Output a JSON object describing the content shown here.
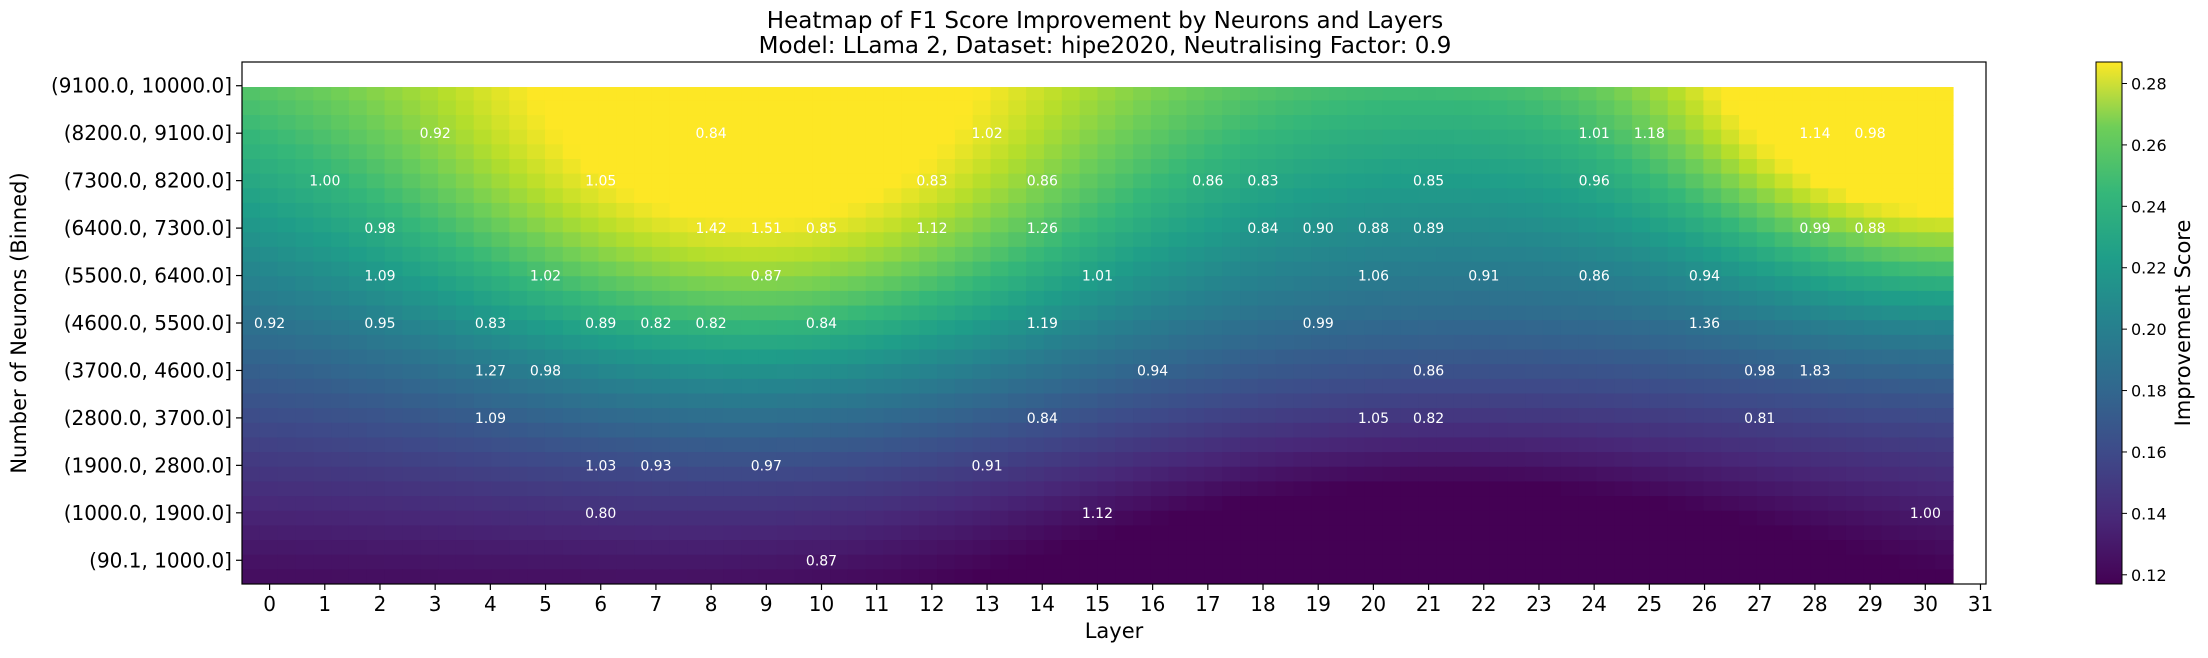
{
  "chart_data": {
    "type": "heatmap",
    "title": "Heatmap of F1 Score Improvement by Neurons and Layers",
    "subtitle": "Model: LLama 2, Dataset: hipe2020, Neutralising Factor: 0.9",
    "xlabel": "Layer",
    "ylabel": "Number of Neurons (Binned)",
    "x_ticks": [
      "0",
      "1",
      "2",
      "3",
      "4",
      "5",
      "6",
      "7",
      "8",
      "9",
      "10",
      "11",
      "12",
      "13",
      "14",
      "15",
      "16",
      "17",
      "18",
      "19",
      "20",
      "21",
      "22",
      "23",
      "24",
      "25",
      "26",
      "27",
      "28",
      "29",
      "30",
      "31"
    ],
    "y_ticks": [
      "(9100.0, 10000.0]",
      "(8200.0, 9100.0]",
      "(7300.0, 8200.0]",
      "(6400.0, 7300.0]",
      "(5500.0, 6400.0]",
      "(4600.0, 5500.0]",
      "(3700.0, 4600.0]",
      "(2800.0, 3700.0]",
      "(1900.0, 2800.0]",
      "(1000.0, 1900.0]",
      "(90.1, 1000.0]"
    ],
    "colorbar_label": "Improvement Score",
    "colorbar_ticks": [
      "0.12",
      "0.14",
      "0.16",
      "0.18",
      "0.20",
      "0.22",
      "0.24",
      "0.26",
      "0.28"
    ],
    "colorbar_range": [
      0.117,
      0.287
    ],
    "colormap": "viridis",
    "annotations": [
      {
        "layer": 3,
        "bin": 1,
        "label": "0.92"
      },
      {
        "layer": 8,
        "bin": 1,
        "label": "0.84"
      },
      {
        "layer": 13,
        "bin": 1,
        "label": "1.02"
      },
      {
        "layer": 24,
        "bin": 1,
        "label": "1.01"
      },
      {
        "layer": 25,
        "bin": 1,
        "label": "1.18"
      },
      {
        "layer": 28,
        "bin": 1,
        "label": "1.14"
      },
      {
        "layer": 29,
        "bin": 1,
        "label": "0.98"
      },
      {
        "layer": 1,
        "bin": 2,
        "label": "1.00"
      },
      {
        "layer": 6,
        "bin": 2,
        "label": "1.05"
      },
      {
        "layer": 12,
        "bin": 2,
        "label": "0.83"
      },
      {
        "layer": 14,
        "bin": 2,
        "label": "0.86"
      },
      {
        "layer": 17,
        "bin": 2,
        "label": "0.86"
      },
      {
        "layer": 18,
        "bin": 2,
        "label": "0.83"
      },
      {
        "layer": 21,
        "bin": 2,
        "label": "0.85"
      },
      {
        "layer": 24,
        "bin": 2,
        "label": "0.96"
      },
      {
        "layer": 2,
        "bin": 3,
        "label": "0.98"
      },
      {
        "layer": 8,
        "bin": 3,
        "label": "1.42"
      },
      {
        "layer": 9,
        "bin": 3,
        "label": "1.51"
      },
      {
        "layer": 10,
        "bin": 3,
        "label": "0.85"
      },
      {
        "layer": 12,
        "bin": 3,
        "label": "1.12"
      },
      {
        "layer": 14,
        "bin": 3,
        "label": "1.26"
      },
      {
        "layer": 18,
        "bin": 3,
        "label": "0.84"
      },
      {
        "layer": 19,
        "bin": 3,
        "label": "0.90"
      },
      {
        "layer": 20,
        "bin": 3,
        "label": "0.88"
      },
      {
        "layer": 21,
        "bin": 3,
        "label": "0.89"
      },
      {
        "layer": 28,
        "bin": 3,
        "label": "0.99"
      },
      {
        "layer": 29,
        "bin": 3,
        "label": "0.88"
      },
      {
        "layer": 2,
        "bin": 4,
        "label": "1.09"
      },
      {
        "layer": 5,
        "bin": 4,
        "label": "1.02"
      },
      {
        "layer": 9,
        "bin": 4,
        "label": "0.87"
      },
      {
        "layer": 15,
        "bin": 4,
        "label": "1.01"
      },
      {
        "layer": 20,
        "bin": 4,
        "label": "1.06"
      },
      {
        "layer": 22,
        "bin": 4,
        "label": "0.91"
      },
      {
        "layer": 24,
        "bin": 4,
        "label": "0.86"
      },
      {
        "layer": 26,
        "bin": 4,
        "label": "0.94"
      },
      {
        "layer": 0,
        "bin": 5,
        "label": "0.92"
      },
      {
        "layer": 2,
        "bin": 5,
        "label": "0.95"
      },
      {
        "layer": 4,
        "bin": 5,
        "label": "0.83"
      },
      {
        "layer": 6,
        "bin": 5,
        "label": "0.89"
      },
      {
        "layer": 7,
        "bin": 5,
        "label": "0.82"
      },
      {
        "layer": 8,
        "bin": 5,
        "label": "0.82"
      },
      {
        "layer": 10,
        "bin": 5,
        "label": "0.84"
      },
      {
        "layer": 14,
        "bin": 5,
        "label": "1.19"
      },
      {
        "layer": 19,
        "bin": 5,
        "label": "0.99"
      },
      {
        "layer": 26,
        "bin": 5,
        "label": "1.36"
      },
      {
        "layer": 4,
        "bin": 6,
        "label": "1.27"
      },
      {
        "layer": 5,
        "bin": 6,
        "label": "0.98"
      },
      {
        "layer": 16,
        "bin": 6,
        "label": "0.94"
      },
      {
        "layer": 21,
        "bin": 6,
        "label": "0.86"
      },
      {
        "layer": 27,
        "bin": 6,
        "label": "0.98"
      },
      {
        "layer": 28,
        "bin": 6,
        "label": "1.83"
      },
      {
        "layer": 4,
        "bin": 7,
        "label": "1.09"
      },
      {
        "layer": 14,
        "bin": 7,
        "label": "0.84"
      },
      {
        "layer": 20,
        "bin": 7,
        "label": "1.05"
      },
      {
        "layer": 21,
        "bin": 7,
        "label": "0.82"
      },
      {
        "layer": 27,
        "bin": 7,
        "label": "0.81"
      },
      {
        "layer": 6,
        "bin": 8,
        "label": "1.03"
      },
      {
        "layer": 7,
        "bin": 8,
        "label": "0.93"
      },
      {
        "layer": 9,
        "bin": 8,
        "label": "0.97"
      },
      {
        "layer": 13,
        "bin": 8,
        "label": "0.91"
      },
      {
        "layer": 6,
        "bin": 9,
        "label": "0.80"
      },
      {
        "layer": 15,
        "bin": 9,
        "label": "1.12"
      },
      {
        "layer": 30,
        "bin": 9,
        "label": "1.00"
      },
      {
        "layer": 10,
        "bin": 10,
        "label": "0.87"
      }
    ]
  }
}
